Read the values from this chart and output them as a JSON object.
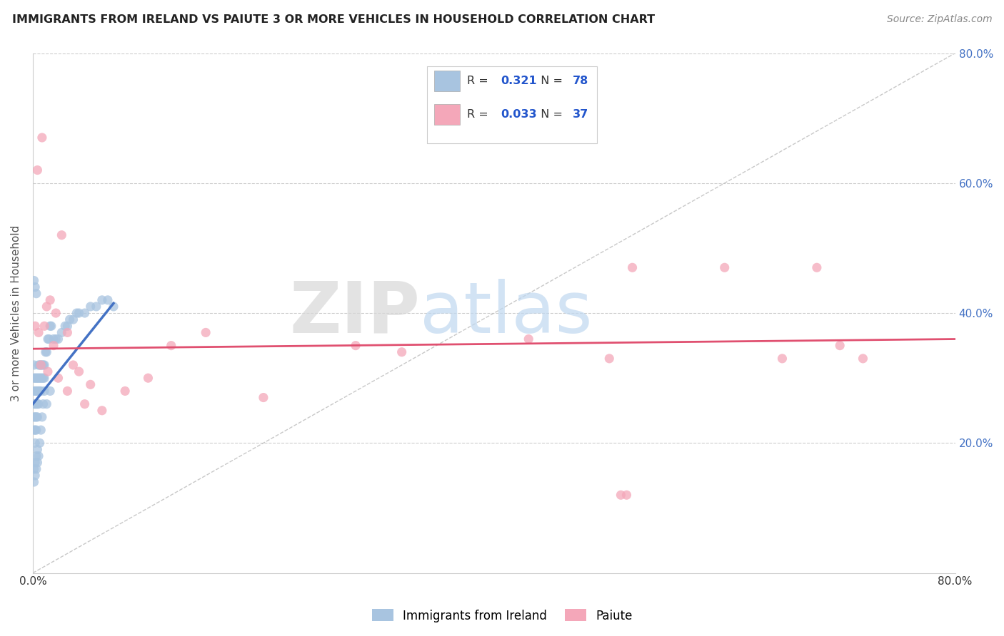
{
  "title": "IMMIGRANTS FROM IRELAND VS PAIUTE 3 OR MORE VEHICLES IN HOUSEHOLD CORRELATION CHART",
  "source": "Source: ZipAtlas.com",
  "ylabel": "3 or more Vehicles in Household",
  "legend_labels": [
    "Immigrants from Ireland",
    "Paiute"
  ],
  "r_ireland": 0.321,
  "n_ireland": 78,
  "r_paiute": 0.033,
  "n_paiute": 37,
  "color_ireland": "#a8c4e0",
  "color_paiute": "#f4a7b9",
  "color_ireland_line": "#4472c4",
  "color_paiute_line": "#e05070",
  "color_diag": "#bbbbbb",
  "watermark_zip": "ZIP",
  "watermark_atlas": "atlas",
  "background": "#ffffff",
  "xmin": 0.0,
  "xmax": 0.8,
  "ymin": 0.0,
  "ymax": 0.8,
  "ytick_vals": [
    0.2,
    0.4,
    0.6,
    0.8
  ],
  "ytick_labels": [
    "20.0%",
    "40.0%",
    "60.0%",
    "80.0%"
  ],
  "xtick_vals": [
    0.0,
    0.1,
    0.2,
    0.3,
    0.4,
    0.5,
    0.6,
    0.7,
    0.8
  ],
  "xtick_labels": [
    "0.0%",
    "",
    "",
    "",
    "",
    "",
    "",
    "",
    "80.0%"
  ],
  "ireland_x": [
    0.001,
    0.001,
    0.001,
    0.001,
    0.001,
    0.001,
    0.002,
    0.002,
    0.002,
    0.002,
    0.002,
    0.002,
    0.003,
    0.003,
    0.003,
    0.003,
    0.003,
    0.004,
    0.004,
    0.004,
    0.004,
    0.005,
    0.005,
    0.005,
    0.005,
    0.006,
    0.006,
    0.006,
    0.007,
    0.007,
    0.007,
    0.008,
    0.008,
    0.009,
    0.009,
    0.01,
    0.01,
    0.011,
    0.012,
    0.013,
    0.014,
    0.015,
    0.016,
    0.018,
    0.02,
    0.022,
    0.025,
    0.028,
    0.03,
    0.032,
    0.035,
    0.038,
    0.04,
    0.045,
    0.05,
    0.055,
    0.06,
    0.065,
    0.07,
    0.001,
    0.001,
    0.002,
    0.002,
    0.003,
    0.003,
    0.004,
    0.004,
    0.005,
    0.006,
    0.007,
    0.008,
    0.009,
    0.01,
    0.012,
    0.015,
    0.001,
    0.002,
    0.003
  ],
  "ireland_y": [
    0.22,
    0.24,
    0.26,
    0.28,
    0.3,
    0.32,
    0.2,
    0.22,
    0.24,
    0.26,
    0.28,
    0.3,
    0.22,
    0.24,
    0.26,
    0.28,
    0.3,
    0.24,
    0.26,
    0.28,
    0.3,
    0.26,
    0.28,
    0.3,
    0.32,
    0.28,
    0.3,
    0.32,
    0.28,
    0.3,
    0.32,
    0.3,
    0.32,
    0.3,
    0.32,
    0.3,
    0.32,
    0.34,
    0.34,
    0.36,
    0.36,
    0.38,
    0.38,
    0.36,
    0.36,
    0.36,
    0.37,
    0.38,
    0.38,
    0.39,
    0.39,
    0.4,
    0.4,
    0.4,
    0.41,
    0.41,
    0.42,
    0.42,
    0.41,
    0.14,
    0.16,
    0.15,
    0.17,
    0.16,
    0.18,
    0.17,
    0.19,
    0.18,
    0.2,
    0.22,
    0.24,
    0.26,
    0.28,
    0.26,
    0.28,
    0.45,
    0.44,
    0.43
  ],
  "paiute_x": [
    0.004,
    0.008,
    0.01,
    0.012,
    0.015,
    0.018,
    0.02,
    0.025,
    0.03,
    0.035,
    0.04,
    0.05,
    0.06,
    0.08,
    0.1,
    0.12,
    0.15,
    0.2,
    0.28,
    0.32,
    0.43,
    0.5,
    0.52,
    0.6,
    0.65,
    0.68,
    0.7,
    0.72,
    0.002,
    0.005,
    0.007,
    0.013,
    0.022,
    0.03,
    0.045,
    0.51,
    0.515
  ],
  "paiute_y": [
    0.62,
    0.67,
    0.38,
    0.41,
    0.42,
    0.35,
    0.4,
    0.52,
    0.37,
    0.32,
    0.31,
    0.29,
    0.25,
    0.28,
    0.3,
    0.35,
    0.37,
    0.27,
    0.35,
    0.34,
    0.36,
    0.33,
    0.47,
    0.47,
    0.33,
    0.47,
    0.35,
    0.33,
    0.38,
    0.37,
    0.32,
    0.31,
    0.3,
    0.28,
    0.26,
    0.12,
    0.12
  ],
  "ireland_trend_x": [
    0.0,
    0.07
  ],
  "ireland_trend_y": [
    0.26,
    0.415
  ],
  "paiute_trend_x": [
    0.0,
    0.8
  ],
  "paiute_trend_y": [
    0.345,
    0.36
  ]
}
